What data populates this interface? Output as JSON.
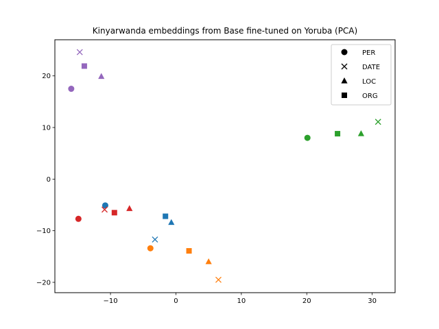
{
  "chart_data": {
    "type": "scatter",
    "title": "Kinyarwanda embeddings from Base fine-tuned on Yoruba (PCA)",
    "xlabel": "",
    "ylabel": "",
    "xlim": [
      -18.5,
      33.5
    ],
    "ylim": [
      -22,
      27
    ],
    "xticks": [
      -10,
      0,
      10,
      20,
      30
    ],
    "yticks": [
      -20,
      -10,
      0,
      10,
      20
    ],
    "grid": false,
    "legend_position": "top-right",
    "legend": [
      {
        "marker": "circle",
        "label": "PER"
      },
      {
        "marker": "x",
        "label": "DATE"
      },
      {
        "marker": "triangle",
        "label": "LOC"
      },
      {
        "marker": "square",
        "label": "ORG"
      }
    ],
    "groups": [
      {
        "color": "#9467bd",
        "points": [
          {
            "marker": "circle",
            "x": -16.0,
            "y": 17.5
          },
          {
            "marker": "x",
            "x": -14.7,
            "y": 24.6
          },
          {
            "marker": "triangle",
            "x": -11.4,
            "y": 19.9
          },
          {
            "marker": "square",
            "x": -14.0,
            "y": 21.9
          }
        ]
      },
      {
        "color": "#1f77b4",
        "points": [
          {
            "marker": "circle",
            "x": -10.8,
            "y": -5.1
          },
          {
            "marker": "x",
            "x": -3.2,
            "y": -11.7
          },
          {
            "marker": "triangle",
            "x": -0.7,
            "y": -8.4
          },
          {
            "marker": "square",
            "x": -1.6,
            "y": -7.2
          }
        ]
      },
      {
        "color": "#d62728",
        "points": [
          {
            "marker": "circle",
            "x": -14.9,
            "y": -7.7
          },
          {
            "marker": "x",
            "x": -10.9,
            "y": -5.9
          },
          {
            "marker": "triangle",
            "x": -7.1,
            "y": -5.7
          },
          {
            "marker": "square",
            "x": -9.4,
            "y": -6.5
          }
        ]
      },
      {
        "color": "#ff7f0e",
        "points": [
          {
            "marker": "circle",
            "x": -3.9,
            "y": -13.4
          },
          {
            "marker": "x",
            "x": 6.5,
            "y": -19.5
          },
          {
            "marker": "triangle",
            "x": 5.0,
            "y": -16.0
          },
          {
            "marker": "square",
            "x": 2.0,
            "y": -13.9
          }
        ]
      },
      {
        "color": "#2ca02c",
        "points": [
          {
            "marker": "circle",
            "x": 20.1,
            "y": 8.0
          },
          {
            "marker": "x",
            "x": 30.9,
            "y": 11.1
          },
          {
            "marker": "triangle",
            "x": 28.3,
            "y": 8.8
          },
          {
            "marker": "square",
            "x": 24.7,
            "y": 8.8
          }
        ]
      }
    ]
  }
}
